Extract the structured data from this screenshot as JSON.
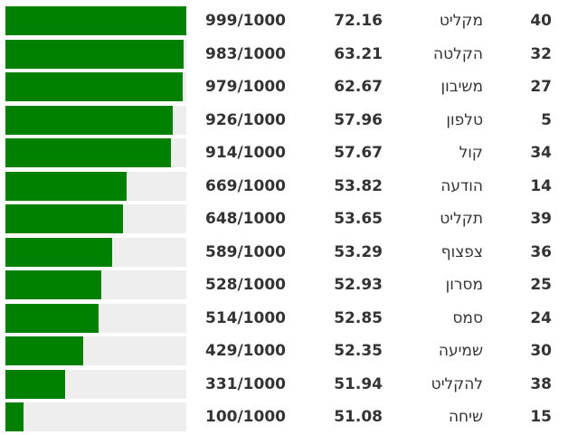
{
  "rating_max": 1000,
  "rows": [
    {
      "rank": 40,
      "word": "מקליט",
      "score": 72.16,
      "rating": {
        "value": 999,
        "label": "999/1000"
      }
    },
    {
      "rank": 32,
      "word": "הקלטה",
      "score": 63.21,
      "rating": {
        "value": 983,
        "label": "983/1000"
      }
    },
    {
      "rank": 27,
      "word": "משיבון",
      "score": 62.67,
      "rating": {
        "value": 979,
        "label": "979/1000"
      }
    },
    {
      "rank": 5,
      "word": "טלפון",
      "score": 57.96,
      "rating": {
        "value": 926,
        "label": "926/1000"
      }
    },
    {
      "rank": 34,
      "word": "קול",
      "score": 57.67,
      "rating": {
        "value": 914,
        "label": "914/1000"
      }
    },
    {
      "rank": 14,
      "word": "הודעה",
      "score": 53.82,
      "rating": {
        "value": 669,
        "label": "669/1000"
      }
    },
    {
      "rank": 39,
      "word": "תקליט",
      "score": 53.65,
      "rating": {
        "value": 648,
        "label": "648/1000"
      }
    },
    {
      "rank": 36,
      "word": "צפצוף",
      "score": 53.29,
      "rating": {
        "value": 589,
        "label": "589/1000"
      }
    },
    {
      "rank": 25,
      "word": "מסרון",
      "score": 52.93,
      "rating": {
        "value": 528,
        "label": "528/1000"
      }
    },
    {
      "rank": 24,
      "word": "סמס",
      "score": 52.85,
      "rating": {
        "value": 514,
        "label": "514/1000"
      }
    },
    {
      "rank": 30,
      "word": "שמיעה",
      "score": 52.35,
      "rating": {
        "value": 429,
        "label": "429/1000"
      }
    },
    {
      "rank": 38,
      "word": "להקליט",
      "score": 51.94,
      "rating": {
        "value": 331,
        "label": "331/1000"
      }
    },
    {
      "rank": 15,
      "word": "שיחה",
      "score": 51.08,
      "rating": {
        "value": 100,
        "label": "100/1000"
      }
    }
  ]
}
